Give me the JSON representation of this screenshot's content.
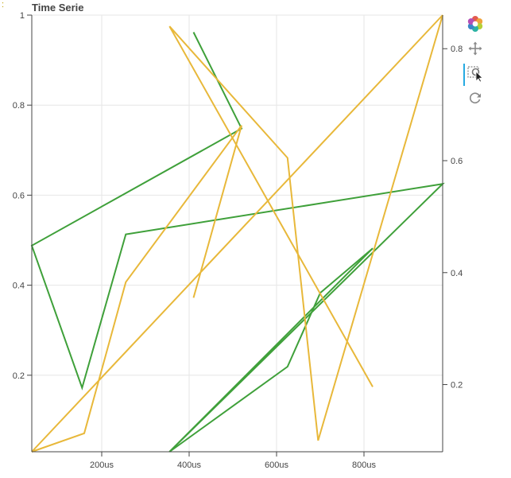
{
  "corner_mark": ":",
  "toolbar": {
    "tools": [
      {
        "name": "bokeh-logo-icon",
        "interactable": false
      },
      {
        "name": "pan-tool-icon",
        "interactable": true
      },
      {
        "name": "box-zoom-tool-icon",
        "interactable": true
      },
      {
        "name": "reset-tool-icon",
        "interactable": true
      }
    ],
    "active_tool": "box-zoom-tool-icon"
  },
  "chart_data": {
    "type": "line",
    "title": "Time Serie",
    "xlabel": "",
    "ylabel": "",
    "xlim": [
      40,
      980
    ],
    "x_ticks": [
      200,
      400,
      600,
      800
    ],
    "x_tick_labels": [
      "200us",
      "400us",
      "600us",
      "800us"
    ],
    "y_left": {
      "lim": [
        0.03,
        1.0
      ],
      "ticks": [
        0.2,
        0.4,
        0.6,
        0.8,
        1.0
      ],
      "tick_labels": [
        "0.2",
        "0.4",
        "0.6",
        "0.8",
        "1"
      ]
    },
    "y_right": {
      "lim": [
        0.08,
        0.86
      ],
      "ticks": [
        0.2,
        0.4,
        0.6,
        0.8
      ],
      "tick_labels": [
        "0.2",
        "0.4",
        "0.6",
        "0.8"
      ]
    },
    "grid": true,
    "series": [
      {
        "axis": "left",
        "color": "#3fa03a",
        "x": [
          410,
          520,
          40,
          155,
          255,
          980,
          355,
          820
        ],
        "y": [
          0.962,
          0.748,
          0.488,
          0.172,
          0.513,
          0.625,
          0.03,
          0.482
        ]
      },
      {
        "axis": "left",
        "color": "#3fa03a",
        "x": [
          355,
          625,
          700,
          820
        ],
        "y": [
          0.03,
          0.219,
          0.383,
          0.482
        ]
      },
      {
        "axis": "right",
        "color": "#e8b83a",
        "x": [
          410,
          520,
          255,
          160,
          40,
          980,
          695,
          625,
          355,
          820
        ],
        "y": [
          0.355,
          0.663,
          0.383,
          0.113,
          0.08,
          0.86,
          0.1,
          0.605,
          0.84,
          0.196
        ]
      }
    ]
  }
}
